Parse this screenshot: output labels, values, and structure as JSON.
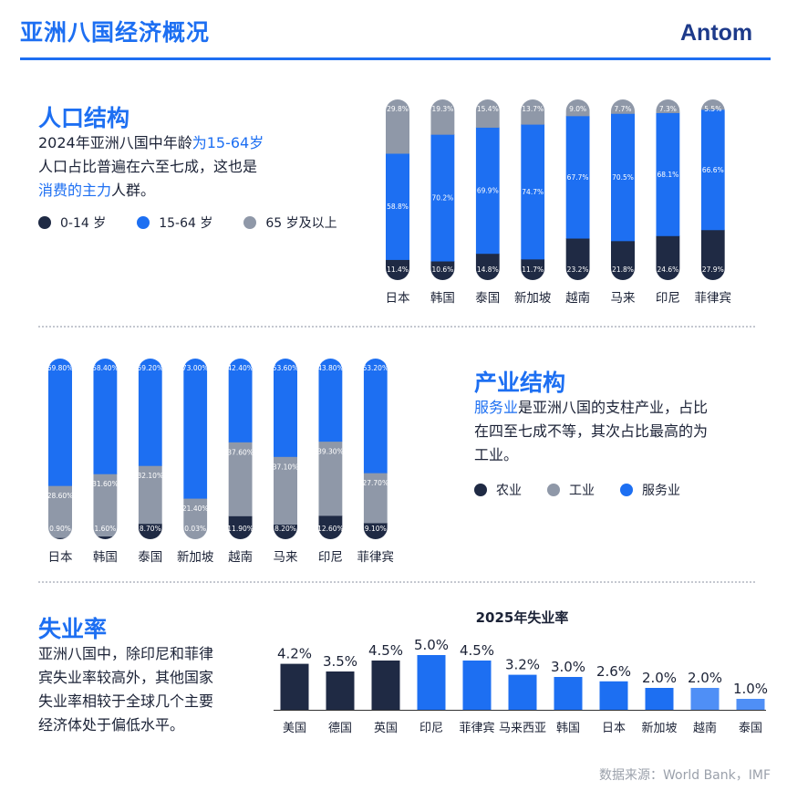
{
  "header": {
    "title": "亚洲八国经济概况",
    "logo": "Antom"
  },
  "population": {
    "title": "人口结构",
    "text": {
      "p1": "2024年亚洲八国中年龄",
      "p2": "为15-64岁",
      "p3": "人口占比普遍在六至七成，这也是",
      "p4": "消费的主力",
      "p5": "人群。"
    },
    "legend": [
      "0-14 岁",
      "15-64 岁",
      "65 岁及以上"
    ]
  },
  "industry": {
    "title": "产业结构",
    "text": {
      "p1": "服务业",
      "p2": "是亚洲八国的支柱产业，占比",
      "p3": "在四至七成不等，其次占比最高的为",
      "p4": "工业。"
    },
    "legend": [
      "农业",
      "工业",
      "服务业"
    ]
  },
  "unemployment": {
    "title": "失业率",
    "text": [
      "亚洲八国中，除印尼和菲律",
      "宾失业率较高外，其他国家",
      "失业率相较于全球几个主要",
      "经济体处于偏低水平。"
    ],
    "chart_title": "2025年失业率"
  },
  "source": "数据来源：World Bank，IMF",
  "colors": {
    "dark": "#1f2a44",
    "blue": "#1d6ff2",
    "gray": "#8f98a8",
    "light_blue": "#4f8ff6"
  },
  "chart_data": [
    {
      "type": "bar",
      "stacked": true,
      "categories": [
        "日本",
        "韩国",
        "泰国",
        "新加坡",
        "越南",
        "马来",
        "印尼",
        "菲律宾"
      ],
      "series": [
        {
          "name": "0-14 岁",
          "values": [
            11.4,
            10.6,
            14.8,
            11.7,
            23.2,
            21.8,
            24.6,
            27.9
          ],
          "labels": [
            "11.4%",
            "10.6%",
            "14.8%",
            "11.7%",
            "23.2%",
            "21.8%",
            "24.6%",
            "27.9%"
          ]
        },
        {
          "name": "15-64 岁",
          "values": [
            58.8,
            70.2,
            69.9,
            74.7,
            67.7,
            70.5,
            68.1,
            66.6
          ],
          "labels": [
            "58.8%",
            "70.2%",
            "69.9%",
            "74.7%",
            "67.7%",
            "70.5%",
            "68.1%",
            "66.6%"
          ]
        },
        {
          "name": "65 岁及以上",
          "values": [
            29.8,
            19.3,
            15.4,
            13.7,
            9.0,
            7.7,
            7.3,
            5.5
          ],
          "labels": [
            "29.8%",
            "19.3%",
            "15.4%",
            "13.7%",
            "9.0%",
            "7.7%",
            "7.3%",
            "5.5%"
          ]
        }
      ]
    },
    {
      "type": "bar",
      "stacked": true,
      "categories": [
        "日本",
        "韩国",
        "泰国",
        "新加坡",
        "越南",
        "马来",
        "印尼",
        "菲律宾"
      ],
      "series": [
        {
          "name": "农业",
          "values": [
            0.9,
            1.6,
            8.7,
            0.03,
            11.9,
            8.2,
            12.6,
            9.1
          ],
          "labels": [
            "0.90%",
            "1.60%",
            "8.70%",
            "0.03%",
            "11.90%",
            "8.20%",
            "12.60%",
            "9.10%"
          ]
        },
        {
          "name": "工业",
          "values": [
            28.6,
            31.6,
            32.1,
            21.4,
            37.6,
            37.1,
            39.3,
            27.7
          ],
          "labels": [
            "28.60%",
            "31.60%",
            "32.10%",
            "21.40%",
            "37.60%",
            "37.10%",
            "39.30%",
            "27.70%"
          ]
        },
        {
          "name": "服务业",
          "values": [
            69.8,
            58.4,
            59.2,
            73.0,
            42.4,
            53.6,
            43.8,
            63.2
          ],
          "labels": [
            "69.80%",
            "58.40%",
            "59.20%",
            "73.00%",
            "42.40%",
            "53.60%",
            "43.80%",
            "63.20%"
          ]
        }
      ]
    },
    {
      "type": "bar",
      "title": "2025年失业率",
      "categories": [
        "美国",
        "德国",
        "英国",
        "印尼",
        "菲律宾",
        "马来西亚",
        "韩国",
        "日本",
        "新加坡",
        "越南",
        "泰国"
      ],
      "values": [
        4.2,
        3.5,
        4.5,
        5.0,
        4.5,
        3.2,
        3.0,
        2.6,
        2.0,
        2.0,
        1.0
      ],
      "labels": [
        "4.2%",
        "3.5%",
        "4.5%",
        "5.0%",
        "4.5%",
        "3.2%",
        "3.0%",
        "2.6%",
        "2.0%",
        "2.0%",
        "1.0%"
      ],
      "bar_colors": [
        "#1f2a44",
        "#1f2a44",
        "#1f2a44",
        "#1d6ff2",
        "#1d6ff2",
        "#1d6ff2",
        "#1d6ff2",
        "#1d6ff2",
        "#1d6ff2",
        "#4f8ff6",
        "#4f8ff6"
      ]
    }
  ]
}
